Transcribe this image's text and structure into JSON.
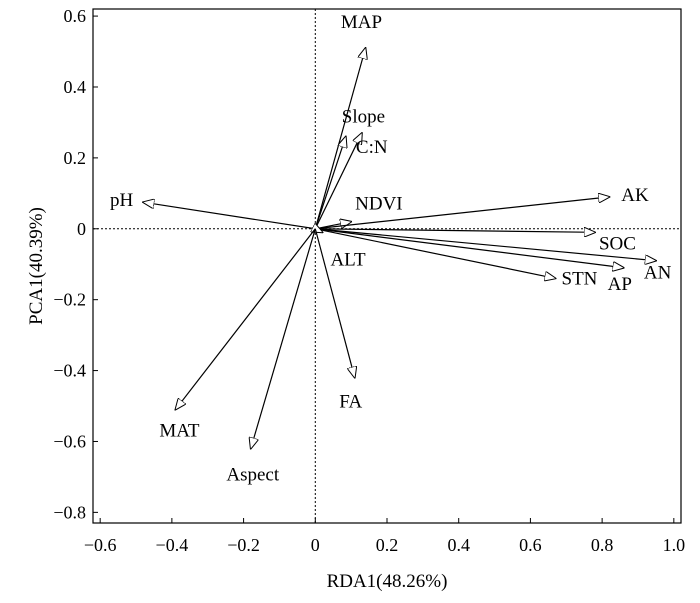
{
  "chart_data": {
    "type": "scatter",
    "subtype": "biplot-vectors",
    "title": "",
    "xlabel": "RDA1(48.26%)",
    "ylabel": "PCA1(40.39%)",
    "xlim": [
      -0.62,
      1.02
    ],
    "ylim": [
      -0.83,
      0.62
    ],
    "xticks": [
      -0.6,
      -0.4,
      -0.2,
      0,
      0.2,
      0.4,
      0.6,
      0.8,
      1.0
    ],
    "xtick_labels": [
      "−0.6",
      "−0.4",
      "−0.2",
      "0",
      "0.2",
      "0.4",
      "0.6",
      "0.8",
      "1.0"
    ],
    "yticks": [
      0.6,
      0.4,
      0.2,
      0,
      -0.2,
      -0.4,
      -0.6,
      -0.8
    ],
    "ytick_labels": [
      "0.6",
      "0.4",
      "0.2",
      "0",
      "−0.2",
      "−0.4",
      "−0.6",
      "−0.8"
    ],
    "reference_lines": "dotted lines at x=0 and y=0",
    "grid": false,
    "legend": "none",
    "vectors": [
      {
        "label": "MAP",
        "x": 0.14,
        "y": 0.51
      },
      {
        "label": "Slope",
        "x": 0.085,
        "y": 0.26
      },
      {
        "label": "C:N",
        "x": 0.13,
        "y": 0.27
      },
      {
        "label": "NDVI",
        "x": 0.1,
        "y": 0.02
      },
      {
        "label": "pH",
        "x": -0.48,
        "y": 0.075
      },
      {
        "label": "AK",
        "x": 0.82,
        "y": 0.09
      },
      {
        "label": "SOC",
        "x": 0.78,
        "y": -0.01
      },
      {
        "label": "AN",
        "x": 0.95,
        "y": -0.09
      },
      {
        "label": "AP",
        "x": 0.86,
        "y": -0.11
      },
      {
        "label": "STN",
        "x": 0.67,
        "y": -0.14
      },
      {
        "label": "ALT",
        "x": 0.02,
        "y": -0.01
      },
      {
        "label": "FA",
        "x": 0.11,
        "y": -0.42
      },
      {
        "label": "MAT",
        "x": -0.39,
        "y": -0.51
      },
      {
        "label": "Aspect",
        "x": -0.18,
        "y": -0.62
      }
    ]
  }
}
